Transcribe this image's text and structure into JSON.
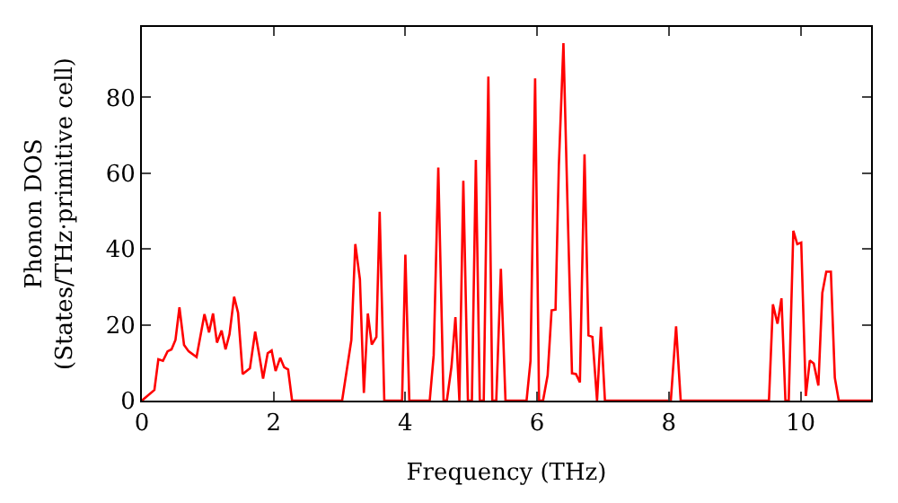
{
  "chart_data": {
    "type": "line",
    "xlabel": "Frequency (THz)",
    "ylabel": "Phonon DOS\n(States/THz·primitive cell)",
    "x": [
      0,
      0.19,
      0.25,
      0.32,
      0.39,
      0.45,
      0.51,
      0.57,
      0.64,
      0.71,
      0.83,
      0.95,
      1.02,
      1.08,
      1.14,
      1.21,
      1.27,
      1.33,
      1.4,
      1.46,
      1.53,
      1.64,
      1.72,
      1.78,
      1.84,
      1.91,
      1.97,
      2.03,
      2.1,
      2.16,
      2.22,
      2.28,
      3.04,
      3.18,
      3.24,
      3.31,
      3.37,
      3.43,
      3.49,
      3.56,
      3.61,
      3.68,
      3.95,
      4.0,
      4.06,
      4.37,
      4.43,
      4.5,
      4.58,
      4.63,
      4.7,
      4.76,
      4.82,
      4.88,
      4.95,
      5.01,
      5.07,
      5.13,
      5.19,
      5.26,
      5.32,
      5.38,
      5.45,
      5.52,
      5.84,
      5.9,
      5.97,
      6.03,
      6.09,
      6.16,
      6.22,
      6.28,
      6.33,
      6.4,
      6.46,
      6.53,
      6.59,
      6.65,
      6.72,
      6.78,
      6.84,
      6.91,
      6.97,
      7.03,
      8.03,
      8.11,
      8.18,
      9.52,
      9.58,
      9.65,
      9.71,
      9.77,
      9.82,
      9.89,
      9.95,
      10.01,
      10.08,
      10.14,
      10.2,
      10.27,
      10.33,
      10.39,
      10.46,
      10.52,
      10.58,
      11.07
    ],
    "series": [
      {
        "color": "#ff0000",
        "values": [
          0,
          2.8,
          10.9,
          10.5,
          13,
          13.5,
          16,
          24.6,
          14.7,
          13,
          11.5,
          22.8,
          18,
          23,
          15.3,
          18.5,
          13.5,
          17.5,
          27.4,
          23.2,
          7,
          8.5,
          18.2,
          12.2,
          5.8,
          12.5,
          13.2,
          7.8,
          11.3,
          8.8,
          8.2,
          0,
          0,
          16,
          41.3,
          32,
          2,
          23,
          14.8,
          16.8,
          49.8,
          0,
          0,
          38.5,
          0,
          0,
          12,
          61.5,
          0,
          0,
          9,
          22,
          0,
          58,
          0,
          0,
          63.5,
          0,
          0,
          85.5,
          0,
          0,
          34.8,
          0,
          0,
          10.5,
          85,
          0,
          0,
          6.7,
          23.8,
          24,
          62,
          94.3,
          52.7,
          7.2,
          7,
          4.8,
          65,
          17.2,
          16.8,
          0,
          19.5,
          0,
          0,
          19.6,
          0,
          0,
          25.4,
          20.3,
          27,
          0,
          0,
          44.8,
          41.3,
          41.7,
          1.2,
          10.6,
          9.8,
          4,
          28.4,
          34,
          34,
          6,
          0,
          0
        ]
      }
    ],
    "xlim": [
      0,
      11.07
    ],
    "ylim": [
      0,
      98.6
    ],
    "xticks": [
      0,
      2,
      4,
      6,
      8,
      10
    ],
    "yticks": [
      0,
      20,
      40,
      60,
      80
    ],
    "marker": "none",
    "line_style": "solid"
  }
}
